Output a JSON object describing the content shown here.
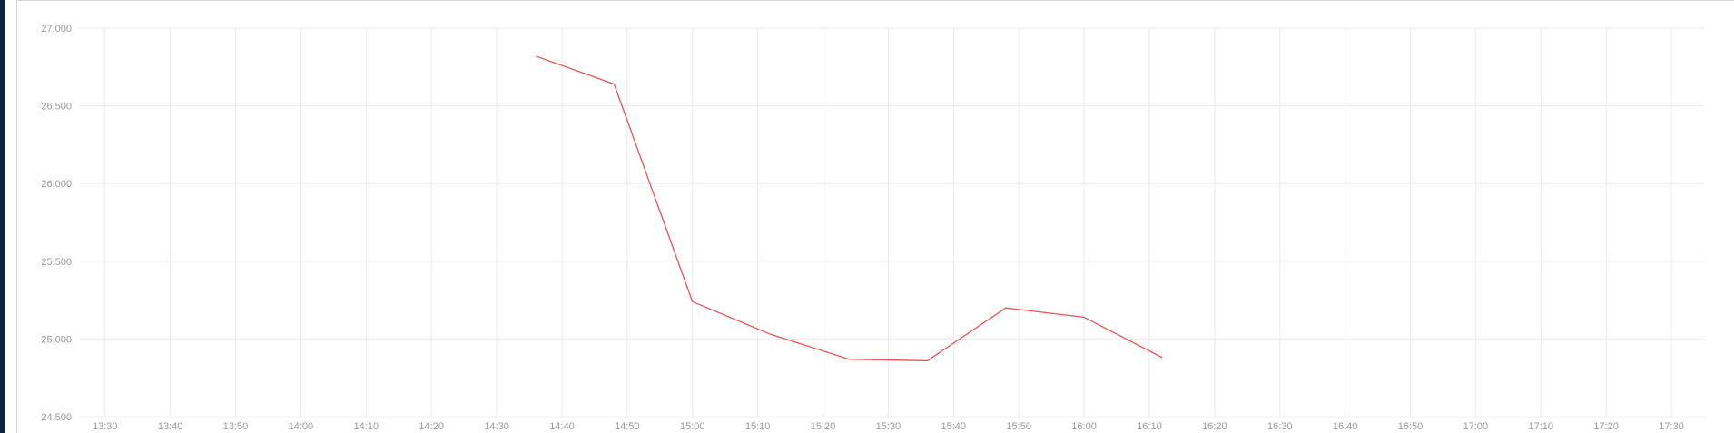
{
  "colors": {
    "line": "#f05252",
    "grid": "#ebebeb",
    "tick_text": "#9a9a9a",
    "left_strip": "#0f2440"
  },
  "chart_data": {
    "type": "line",
    "title": "",
    "xlabel": "",
    "ylabel": "",
    "grid": true,
    "legend": "none",
    "xlim": [
      "13:26",
      "17:35"
    ],
    "ylim": [
      24.5,
      27.0
    ],
    "x_ticks": [
      "13:30",
      "13:40",
      "13:50",
      "14:00",
      "14:10",
      "14:20",
      "14:30",
      "14:40",
      "14:50",
      "15:00",
      "15:10",
      "15:20",
      "15:30",
      "15:40",
      "15:50",
      "16:00",
      "16:10",
      "16:20",
      "16:30",
      "16:40",
      "16:50",
      "17:00",
      "17:10",
      "17:20",
      "17:30"
    ],
    "y_ticks": [
      {
        "value": 24.5,
        "label": "24.500"
      },
      {
        "value": 25.0,
        "label": "25.000"
      },
      {
        "value": 25.5,
        "label": "25.500"
      },
      {
        "value": 26.0,
        "label": "26.000"
      },
      {
        "value": 26.5,
        "label": "26.500"
      },
      {
        "value": 27.0,
        "label": "27.000"
      }
    ],
    "series": [
      {
        "x": [
          "14:36",
          "14:48",
          "15:00",
          "15:12",
          "15:24",
          "15:36",
          "15:48",
          "16:00",
          "16:12"
        ],
        "values": [
          26.82,
          26.64,
          25.24,
          25.03,
          24.87,
          24.86,
          25.2,
          25.14,
          24.88
        ]
      }
    ]
  }
}
